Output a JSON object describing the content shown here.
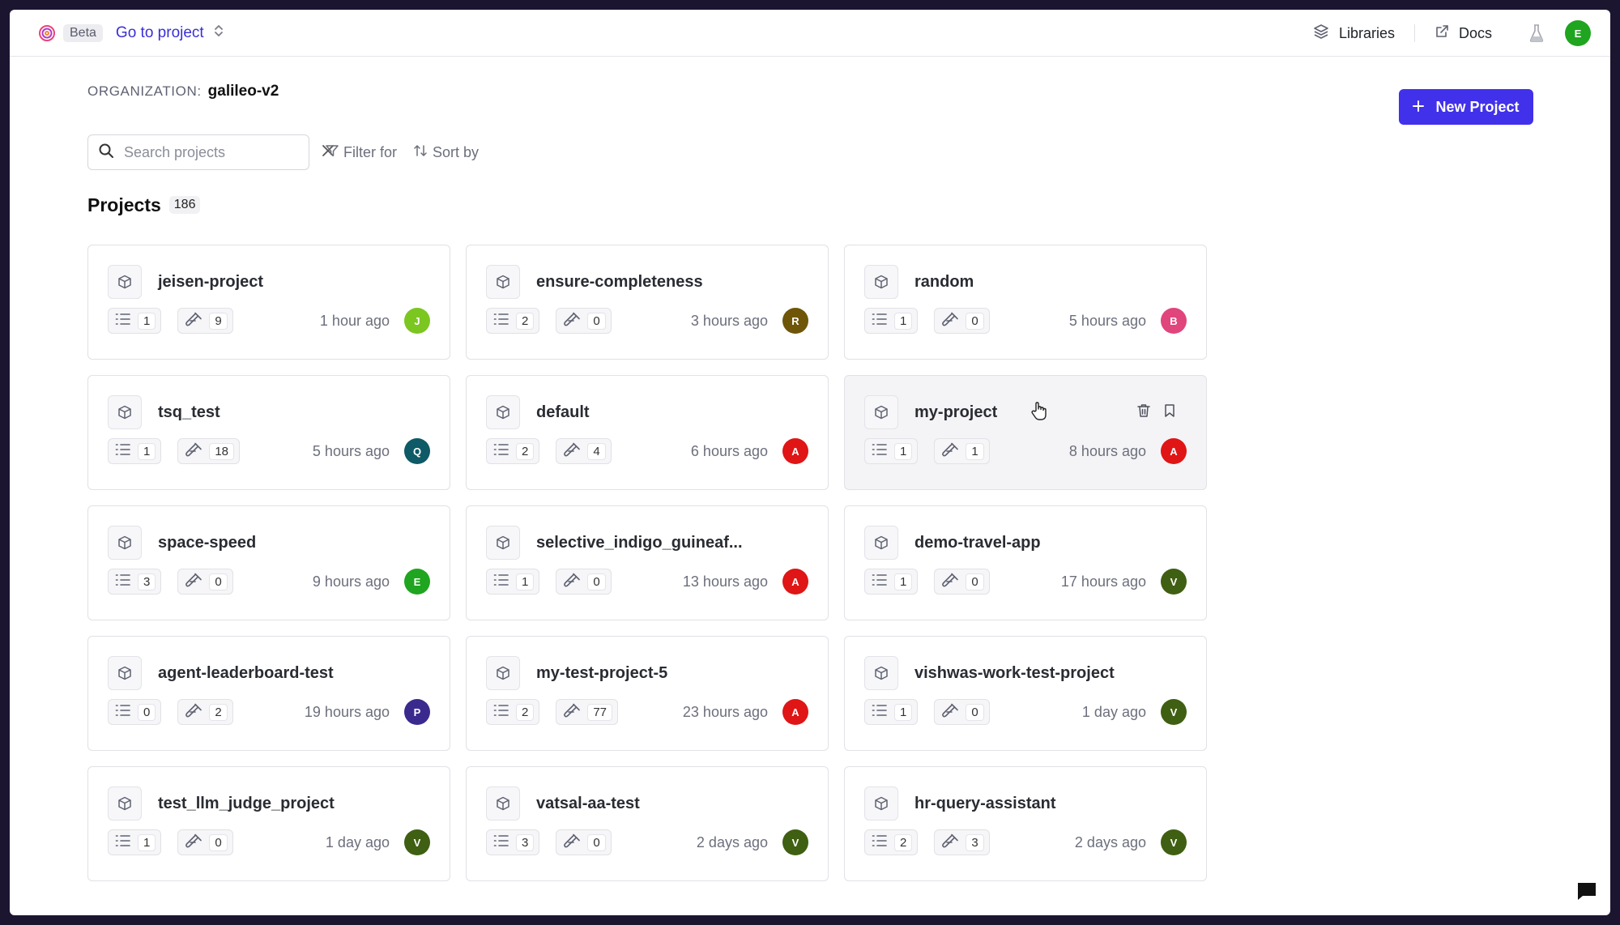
{
  "topbar": {
    "beta": "Beta",
    "goto": "Go to project",
    "libraries": "Libraries",
    "docs": "Docs",
    "user_initial": "E",
    "user_color": "#1fa51f"
  },
  "org": {
    "label": "ORGANIZATION:",
    "name": "galileo-v2"
  },
  "actions": {
    "new_project": "New Project"
  },
  "search": {
    "placeholder": "Search projects",
    "value": ""
  },
  "filter": {
    "label": "Filter for"
  },
  "sort": {
    "label": "Sort by"
  },
  "projects": {
    "title": "Projects",
    "count": "186",
    "items": [
      {
        "name": "jeisen-project",
        "logs": "1",
        "experiments": "9",
        "time": "1 hour ago",
        "initial": "J",
        "color": "#7cc621"
      },
      {
        "name": "ensure-completeness",
        "logs": "2",
        "experiments": "0",
        "time": "3 hours ago",
        "initial": "R",
        "color": "#6e5508"
      },
      {
        "name": "random",
        "logs": "1",
        "experiments": "0",
        "time": "5 hours ago",
        "initial": "B",
        "color": "#e0457b"
      },
      {
        "name": "tsq_test",
        "logs": "1",
        "experiments": "18",
        "time": "5 hours ago",
        "initial": "Q",
        "color": "#0e5a66"
      },
      {
        "name": "default",
        "logs": "2",
        "experiments": "4",
        "time": "6 hours ago",
        "initial": "A",
        "color": "#e01515"
      },
      {
        "name": "my-project",
        "logs": "1",
        "experiments": "1",
        "time": "8 hours ago",
        "initial": "A",
        "color": "#e01515"
      },
      {
        "name": "space-speed",
        "logs": "3",
        "experiments": "0",
        "time": "9 hours ago",
        "initial": "E",
        "color": "#1fa51f"
      },
      {
        "name": "selective_indigo_guineaf...",
        "logs": "1",
        "experiments": "0",
        "time": "13 hours ago",
        "initial": "A",
        "color": "#e01515"
      },
      {
        "name": "demo-travel-app",
        "logs": "1",
        "experiments": "0",
        "time": "17 hours ago",
        "initial": "V",
        "color": "#3f5f12"
      },
      {
        "name": "agent-leaderboard-test",
        "logs": "0",
        "experiments": "2",
        "time": "19 hours ago",
        "initial": "P",
        "color": "#3a2a8e"
      },
      {
        "name": "my-test-project-5",
        "logs": "2",
        "experiments": "77",
        "time": "23 hours ago",
        "initial": "A",
        "color": "#e01515"
      },
      {
        "name": "vishwas-work-test-project",
        "logs": "1",
        "experiments": "0",
        "time": "1 day ago",
        "initial": "V",
        "color": "#3f5f12"
      },
      {
        "name": "test_llm_judge_project",
        "logs": "1",
        "experiments": "0",
        "time": "1 day ago",
        "initial": "V",
        "color": "#3f5f12"
      },
      {
        "name": "vatsal-aa-test",
        "logs": "3",
        "experiments": "0",
        "time": "2 days ago",
        "initial": "V",
        "color": "#3f5f12"
      },
      {
        "name": "hr-query-assistant",
        "logs": "2",
        "experiments": "3",
        "time": "2 days ago",
        "initial": "V",
        "color": "#3f5f12"
      }
    ]
  }
}
